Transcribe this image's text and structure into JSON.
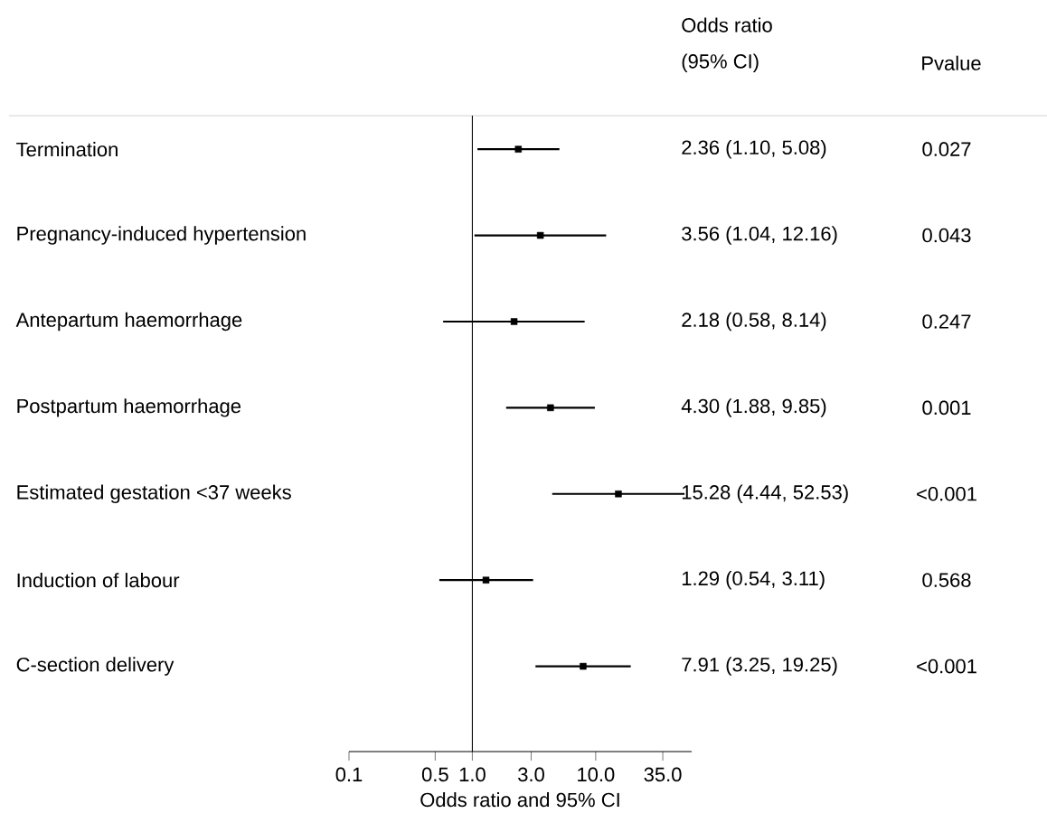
{
  "chart_data": {
    "type": "scatter",
    "orientation": "horizontal",
    "log": "x",
    "marker": "square",
    "color": "#000000",
    "categories": [
      "Termination",
      "Pregnancy-induced hypertension",
      "Antepartum haemorrhage",
      "Postpartum haemorrhage",
      "Estimated gestation <37 weeks",
      "Induction of labour",
      "C-section delivery"
    ],
    "values": [
      2.36,
      3.56,
      2.18,
      4.3,
      15.28,
      1.29,
      7.91
    ],
    "errors": [
      [
        1.1,
        5.08
      ],
      [
        1.04,
        12.16
      ],
      [
        0.58,
        8.14
      ],
      [
        1.88,
        9.85
      ],
      [
        4.44,
        52.53
      ],
      [
        0.54,
        3.11
      ],
      [
        3.25,
        19.25
      ]
    ],
    "xlabel": "Odds ratio and 95% CI",
    "xlim": [
      0.1,
      60
    ],
    "xticks": [
      0.1,
      0.5,
      {
        "value": 1,
        "label": "1.0"
      },
      {
        "value": 3,
        "label": "3.0"
      },
      {
        "value": 10,
        "label": "10.0"
      },
      {
        "value": 35,
        "label": "35.0"
      }
    ],
    "ref_lines": [
      {
        "axis": "x",
        "value": 1,
        "color": "#000000"
      }
    ],
    "annotations": [
      "Odds ratio",
      "(95% CI)",
      "Pvalue",
      "2.36 (1.10, 5.08)",
      "3.56 (1.04, 12.16)",
      "2.18 (0.58, 8.14)",
      "4.30 (1.88, 9.85)",
      "15.28 (4.44, 52.53)",
      "1.29 (0.54, 3.11)",
      "7.91 (3.25, 19.25)",
      "0.027",
      "0.043",
      "0.247",
      "0.001",
      "<0.001",
      "0.568",
      "<0.001"
    ]
  }
}
